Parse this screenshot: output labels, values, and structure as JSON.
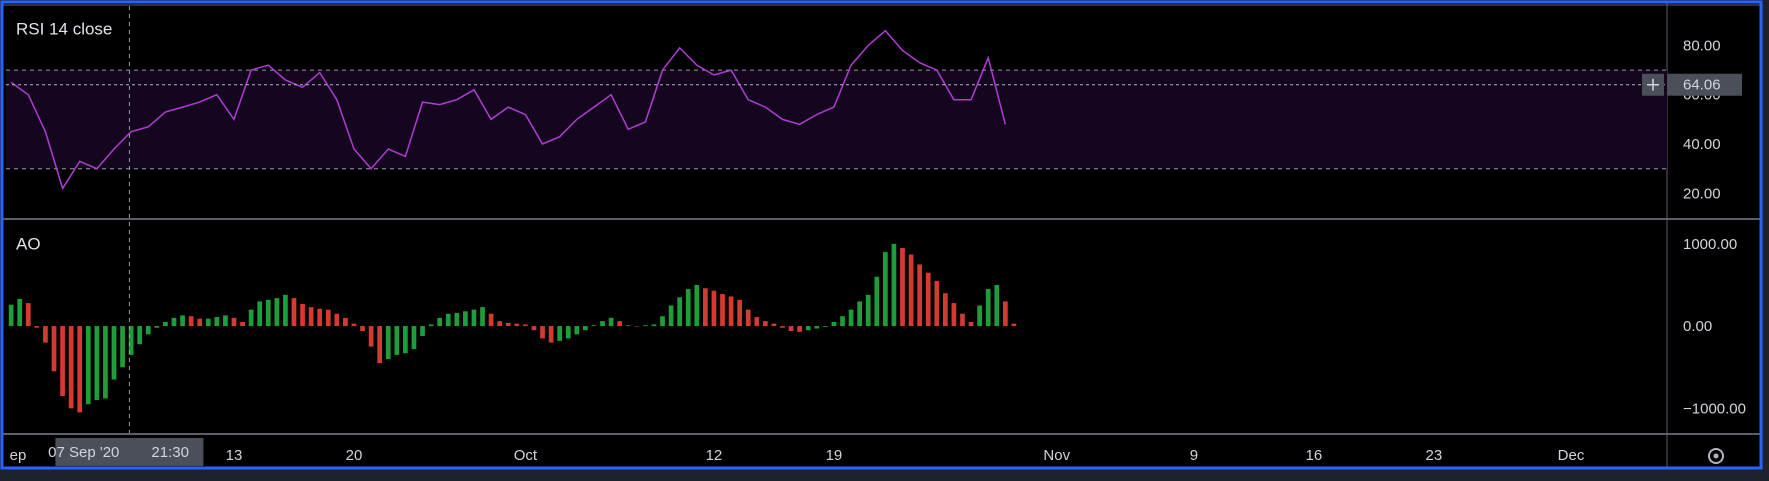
{
  "chart_data": [
    {
      "type": "line",
      "title": "RSI 14 close",
      "color": "#b03cd4",
      "x": [
        0,
        1,
        2,
        3,
        4,
        5,
        6,
        7,
        8,
        9,
        10,
        11,
        12,
        13,
        14,
        15,
        16,
        17,
        18,
        19,
        20,
        21,
        22,
        23,
        24,
        25,
        26,
        27,
        28,
        29,
        30,
        31,
        32,
        33,
        34,
        35,
        36,
        37,
        38,
        39,
        40,
        41,
        42,
        43,
        44,
        45,
        46,
        47,
        48,
        49,
        50,
        51,
        52,
        53,
        54,
        55,
        56,
        57,
        58
      ],
      "values": [
        65,
        60,
        45,
        22,
        33,
        30,
        38,
        45,
        47,
        53,
        55,
        57,
        60,
        50,
        70,
        72,
        66,
        63,
        69,
        58,
        38,
        30,
        38,
        35,
        57,
        56,
        58,
        62,
        50,
        55,
        52,
        40,
        43,
        50,
        55,
        60,
        46,
        49,
        70,
        79,
        72,
        68,
        70,
        58,
        55,
        50,
        48,
        52,
        55,
        72,
        80,
        86,
        78,
        73,
        70,
        58,
        58,
        75,
        48
      ],
      "xlim": [
        -0.3,
        96.6
      ],
      "ylim": [
        10,
        96
      ],
      "yticks": [
        {
          "value": 20,
          "label": "20.00"
        },
        {
          "value": 40,
          "label": "40.00"
        },
        {
          "value": 60,
          "label": "60.00"
        },
        {
          "value": 80,
          "label": "80.00"
        }
      ],
      "bands": [
        30,
        70
      ],
      "band_color": "#14061e",
      "current_value": 64.06
    },
    {
      "type": "bar",
      "title": "AO",
      "up_color": "#1e9e3a",
      "down_color": "#d23b32",
      "x": [
        0,
        0.5,
        1,
        1.5,
        2,
        2.5,
        3,
        3.5,
        4,
        4.5,
        5,
        5.5,
        6,
        6.5,
        7,
        7.5,
        8,
        8.5,
        9,
        9.5,
        10,
        10.5,
        11,
        11.5,
        12,
        12.5,
        13,
        13.5,
        14,
        14.5,
        15,
        15.5,
        16,
        16.5,
        17,
        17.5,
        18,
        18.5,
        19,
        19.5,
        20,
        20.5,
        21,
        21.5,
        22,
        22.5,
        23,
        23.5,
        24,
        24.5,
        25,
        25.5,
        26,
        26.5,
        27,
        27.5,
        28,
        28.5,
        29,
        29.5,
        30,
        30.5,
        31,
        31.5,
        32,
        32.5,
        33,
        33.5,
        34,
        34.5,
        35,
        35.5,
        36,
        36.5,
        37,
        37.5,
        38,
        38.5,
        39,
        39.5,
        40,
        40.5,
        41,
        41.5,
        42,
        42.5,
        43,
        43.5,
        44,
        44.5,
        45,
        45.5,
        46,
        46.5,
        47,
        47.5,
        48,
        48.5,
        49,
        49.5,
        50,
        50.5,
        51,
        51.5,
        52,
        52.5,
        53,
        53.5,
        54,
        54.5,
        55,
        55.5,
        56,
        56.5,
        57,
        57.5,
        58,
        58.5
      ],
      "values": [
        260,
        330,
        280,
        -20,
        -200,
        -550,
        -850,
        -1000,
        -1050,
        -950,
        -900,
        -880,
        -650,
        -500,
        -350,
        -220,
        -100,
        -20,
        50,
        100,
        130,
        120,
        90,
        90,
        110,
        130,
        100,
        50,
        200,
        300,
        320,
        340,
        380,
        340,
        270,
        230,
        210,
        200,
        150,
        100,
        30,
        -60,
        -250,
        -450,
        -400,
        -350,
        -330,
        -280,
        -120,
        20,
        100,
        150,
        160,
        180,
        200,
        230,
        150,
        60,
        40,
        30,
        20,
        -50,
        -150,
        -200,
        -180,
        -150,
        -100,
        -50,
        10,
        60,
        100,
        60,
        10,
        0,
        10,
        20,
        120,
        250,
        350,
        450,
        500,
        460,
        430,
        390,
        360,
        320,
        200,
        110,
        60,
        30,
        -20,
        -60,
        -70,
        -50,
        -30,
        -10,
        50,
        120,
        200,
        300,
        380,
        600,
        900,
        1000,
        950,
        870,
        750,
        650,
        550,
        400,
        280,
        150,
        50,
        250,
        450,
        500,
        300,
        30
      ],
      "xlim": [
        -0.3,
        96.6
      ],
      "ylim": [
        -1300,
        1290
      ],
      "yticks": [
        {
          "value": -1000,
          "label": "−1000.00"
        },
        {
          "value": 0,
          "label": "0.00"
        },
        {
          "value": 1000,
          "label": "1000.00"
        }
      ],
      "xticks": [
        {
          "value": 0,
          "label": "ep"
        },
        13,
        20,
        {
          "value": 30,
          "label": "Oct"
        },
        {
          "value": 41,
          "label": "12"
        },
        {
          "value": 48,
          "label": "19"
        },
        {
          "value": 61,
          "label": "Nov"
        },
        {
          "value": 69,
          "label": "9"
        },
        {
          "value": 76,
          "label": "16"
        },
        {
          "value": 83,
          "label": "23"
        },
        {
          "value": 91,
          "label": "Dec"
        }
      ]
    }
  ],
  "crosshair": {
    "x": 6.9,
    "date_label": "07 Sep '20",
    "time_label": "21:30"
  }
}
